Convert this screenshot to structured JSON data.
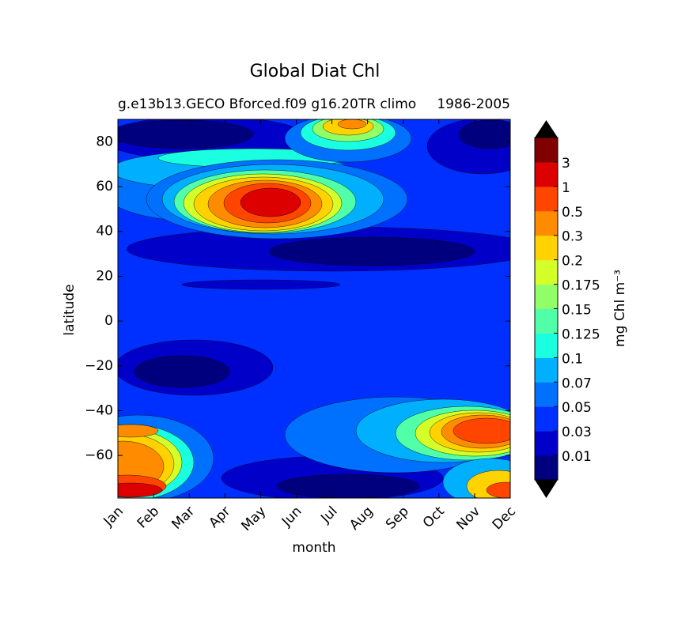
{
  "chart_data": {
    "type": "contour",
    "title": "Global Diat Chl",
    "subtitle_left": "g.e13b13.GECO Bforced.f09 g16.20TR climo",
    "subtitle_right": "1986-2005",
    "x_label": "month",
    "y_label": "latitude",
    "categories": [
      "Jan",
      "Feb",
      "Mar",
      "Apr",
      "May",
      "Jun",
      "Jul",
      "Aug",
      "Sep",
      "Oct",
      "Nov",
      "Dec"
    ],
    "ylim": [
      -79,
      90
    ],
    "yticks": [
      {
        "value": -60,
        "label": "−60"
      },
      {
        "value": -40,
        "label": "−40"
      },
      {
        "value": -20,
        "label": "−20"
      },
      0,
      20,
      40,
      60,
      80
    ],
    "colorbar": {
      "label": "mg Chl m⁻³",
      "levels": [
        0.01,
        0.03,
        0.05,
        0.07,
        0.1,
        0.125,
        0.15,
        0.175,
        0.2,
        0.3,
        0.5,
        1,
        3
      ],
      "colors": [
        "#00007f",
        "#0000c8",
        "#0030ff",
        "#0070ff",
        "#00b0ff",
        "#1affe0",
        "#50ffa8",
        "#90ff68",
        "#d4ff28",
        "#ffd200",
        "#ff8c00",
        "#ff4500",
        "#dd0000",
        "#800000"
      ],
      "extend_color": "#000000"
    }
  }
}
